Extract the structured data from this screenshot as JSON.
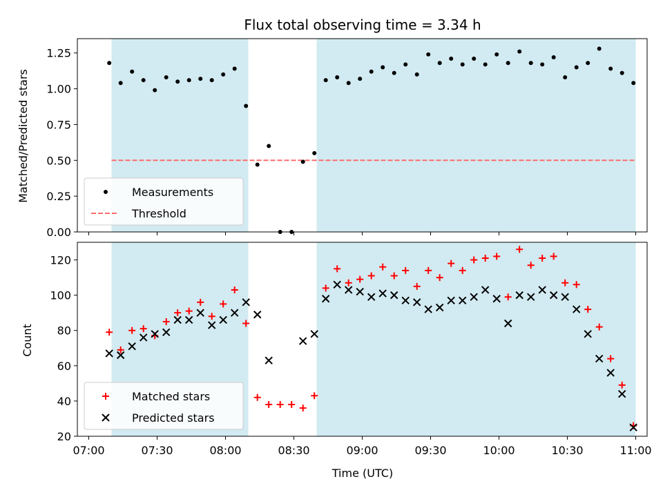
{
  "title": "Flux total observing time = 3.34 h",
  "xlabel": "Time (UTC)",
  "x_tick_labels": [
    "07:00",
    "07:30",
    "08:00",
    "08:30",
    "09:00",
    "09:30",
    "10:00",
    "10:30",
    "11:00"
  ],
  "colors": {
    "shade": "#add8e6",
    "threshold": "#ff6b6b",
    "matched": "#ff0000",
    "predicted": "#000000",
    "measurements": "#000000"
  },
  "chart_data": [
    {
      "type": "scatter",
      "panel": "top",
      "ylabel": "Matched/Predicted stars",
      "xlim": [
        "07:00",
        "11:00"
      ],
      "ylim": [
        0,
        1.35
      ],
      "y_ticks": [
        "0.00",
        "0.25",
        "0.50",
        "0.75",
        "1.00",
        "1.25"
      ],
      "shaded_ranges": [
        [
          "07:10",
          "08:10"
        ],
        [
          "08:40",
          "11:00"
        ]
      ],
      "threshold": 0.5,
      "legend": {
        "position": "lower-left",
        "entries": [
          "Measurements",
          "Threshold"
        ]
      },
      "x": [
        "07:09",
        "07:14",
        "07:19",
        "07:24",
        "07:29",
        "07:34",
        "07:39",
        "07:44",
        "07:49",
        "07:54",
        "07:59",
        "08:04",
        "08:09",
        "08:14",
        "08:19",
        "08:24",
        "08:29",
        "08:34",
        "08:39",
        "08:44",
        "08:49",
        "08:54",
        "08:59",
        "09:04",
        "09:09",
        "09:14",
        "09:19",
        "09:24",
        "09:29",
        "09:34",
        "09:39",
        "09:44",
        "09:49",
        "09:54",
        "09:59",
        "10:04",
        "10:09",
        "10:14",
        "10:19",
        "10:24",
        "10:29",
        "10:34",
        "10:39",
        "10:44",
        "10:49",
        "10:54",
        "10:59"
      ],
      "series": [
        {
          "name": "Measurements",
          "values": [
            1.18,
            1.04,
            1.12,
            1.06,
            0.99,
            1.08,
            1.05,
            1.06,
            1.07,
            1.06,
            1.1,
            1.14,
            0.88,
            0.47,
            0.6,
            0.0,
            0.0,
            0.49,
            0.55,
            1.06,
            1.08,
            1.04,
            1.07,
            1.12,
            1.15,
            1.11,
            1.17,
            1.1,
            1.24,
            1.18,
            1.21,
            1.17,
            1.21,
            1.17,
            1.24,
            1.18,
            1.26,
            1.18,
            1.17,
            1.22,
            1.08,
            1.15,
            1.18,
            1.28,
            1.14,
            1.11,
            1.04
          ]
        }
      ]
    },
    {
      "type": "scatter",
      "panel": "bottom",
      "ylabel": "Count",
      "xlim": [
        "07:00",
        "11:00"
      ],
      "ylim": [
        20,
        130
      ],
      "y_ticks": [
        "20",
        "40",
        "60",
        "80",
        "100",
        "120"
      ],
      "shaded_ranges": [
        [
          "07:10",
          "08:10"
        ],
        [
          "08:40",
          "11:00"
        ]
      ],
      "legend": {
        "position": "lower-left",
        "entries": [
          "Matched stars",
          "Predicted stars"
        ]
      },
      "x": [
        "07:09",
        "07:14",
        "07:19",
        "07:24",
        "07:29",
        "07:34",
        "07:39",
        "07:44",
        "07:49",
        "07:54",
        "07:59",
        "08:04",
        "08:09",
        "08:14",
        "08:19",
        "08:24",
        "08:29",
        "08:34",
        "08:39",
        "08:44",
        "08:49",
        "08:54",
        "08:59",
        "09:04",
        "09:09",
        "09:14",
        "09:19",
        "09:24",
        "09:29",
        "09:34",
        "09:39",
        "09:44",
        "09:49",
        "09:54",
        "09:59",
        "10:04",
        "10:09",
        "10:14",
        "10:19",
        "10:24",
        "10:29",
        "10:34",
        "10:39",
        "10:44",
        "10:49",
        "10:54",
        "10:59"
      ],
      "series": [
        {
          "name": "Matched stars",
          "values": [
            79,
            69,
            80,
            81,
            77,
            85,
            90,
            91,
            96,
            88,
            95,
            103,
            84,
            42,
            38,
            38,
            38,
            36,
            43,
            104,
            115,
            107,
            109,
            111,
            116,
            111,
            114,
            105,
            114,
            110,
            118,
            114,
            120,
            121,
            122,
            99,
            126,
            117,
            121,
            122,
            107,
            106,
            92,
            82,
            64,
            49,
            26
          ]
        },
        {
          "name": "Predicted stars",
          "values": [
            67,
            66,
            71,
            76,
            78,
            79,
            86,
            86,
            90,
            83,
            86,
            90,
            96,
            89,
            63,
            null,
            null,
            74,
            78,
            98,
            106,
            103,
            102,
            99,
            101,
            100,
            97,
            96,
            92,
            93,
            97,
            97,
            99,
            103,
            98,
            84,
            100,
            99,
            103,
            100,
            99,
            92,
            78,
            64,
            56,
            44,
            25
          ]
        }
      ]
    }
  ]
}
